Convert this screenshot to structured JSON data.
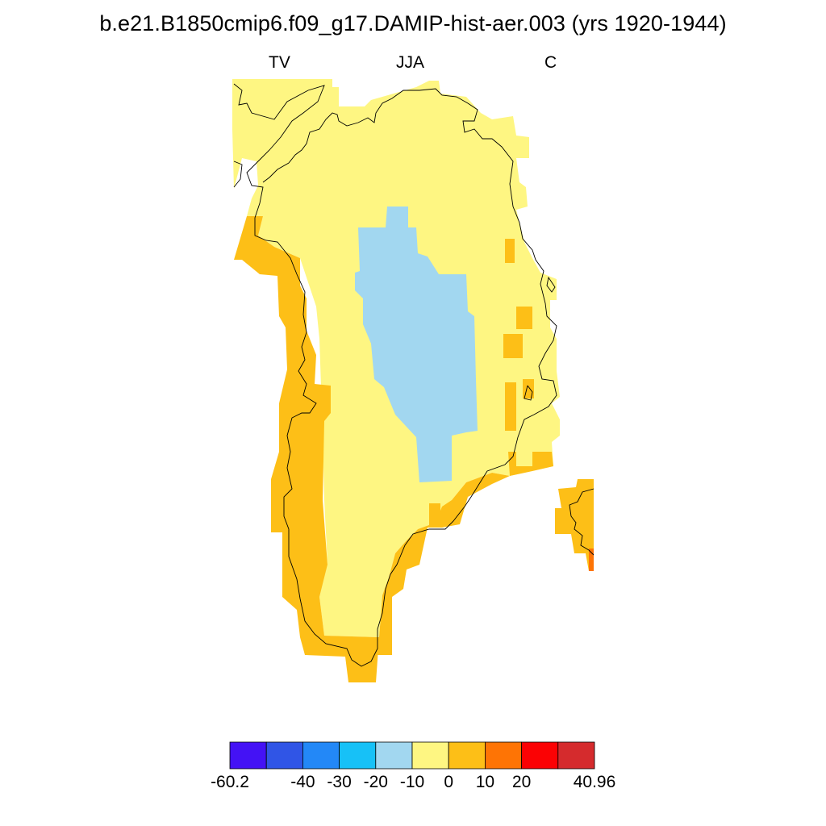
{
  "title": "b.e21.B1850cmip6.f09_g17.DAMIP-hist-aer.003 (yrs 1920-1944)",
  "subtitle_left": "TV",
  "subtitle_center": "JJA",
  "subtitle_right": "C",
  "colorbar": {
    "colors": [
      "#4412f5",
      "#3055e6",
      "#2388f7",
      "#17c1f7",
      "#a2d7f0",
      "#fef682",
      "#fdbf17",
      "#fe7405",
      "#fb0204",
      "#d52b2d"
    ],
    "labels": [
      "-60.2",
      "-40",
      "-30",
      "-20",
      "-10",
      "0",
      "10",
      "20",
      "40.96"
    ],
    "label_values": [
      -60.2,
      -40,
      -30,
      -20,
      -10,
      0,
      10,
      20,
      40.96
    ],
    "boundaries": [
      -60.2,
      -50,
      -40,
      -30,
      -20,
      -10,
      0,
      10,
      20,
      30,
      40.96
    ]
  },
  "map_colors": {
    "land_anomaly_0_10": "#fef682",
    "coast_anomaly_10_20": "#fdbf17",
    "interior_anomaly_neg20_neg10": "#a2d7f0",
    "hot_spot_20_30": "#fe7405",
    "coastline": "#000000"
  }
}
